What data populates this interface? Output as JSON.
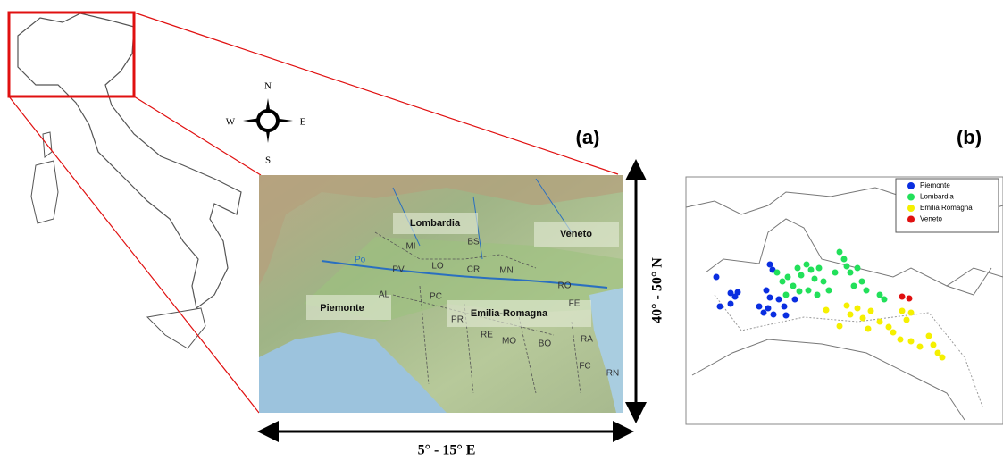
{
  "panel_a": {
    "label": "(a)",
    "compass": {
      "n": "N",
      "s": "S",
      "w": "W",
      "e": "E"
    },
    "river": "Po",
    "regions": [
      "Lombardia",
      "Veneto",
      "Piemonte",
      "Emilia-Romagna"
    ],
    "provinces": [
      "MI",
      "BS",
      "PV",
      "LO",
      "CR",
      "MN",
      "AL",
      "PC",
      "PR",
      "RO",
      "FE",
      "RE",
      "MO",
      "BO",
      "RA",
      "FC",
      "RN"
    ],
    "x_extent": "5° - 15° E",
    "y_extent": "40° - 50° N"
  },
  "panel_b": {
    "label": "(b)",
    "legend": [
      {
        "name": "Piemonte",
        "color": "#0a2ee0"
      },
      {
        "name": "Lombardia",
        "color": "#22e05a"
      },
      {
        "name": "Emilia Romagna",
        "color": "#f5f000"
      },
      {
        "name": "Veneto",
        "color": "#e01010"
      }
    ]
  }
}
